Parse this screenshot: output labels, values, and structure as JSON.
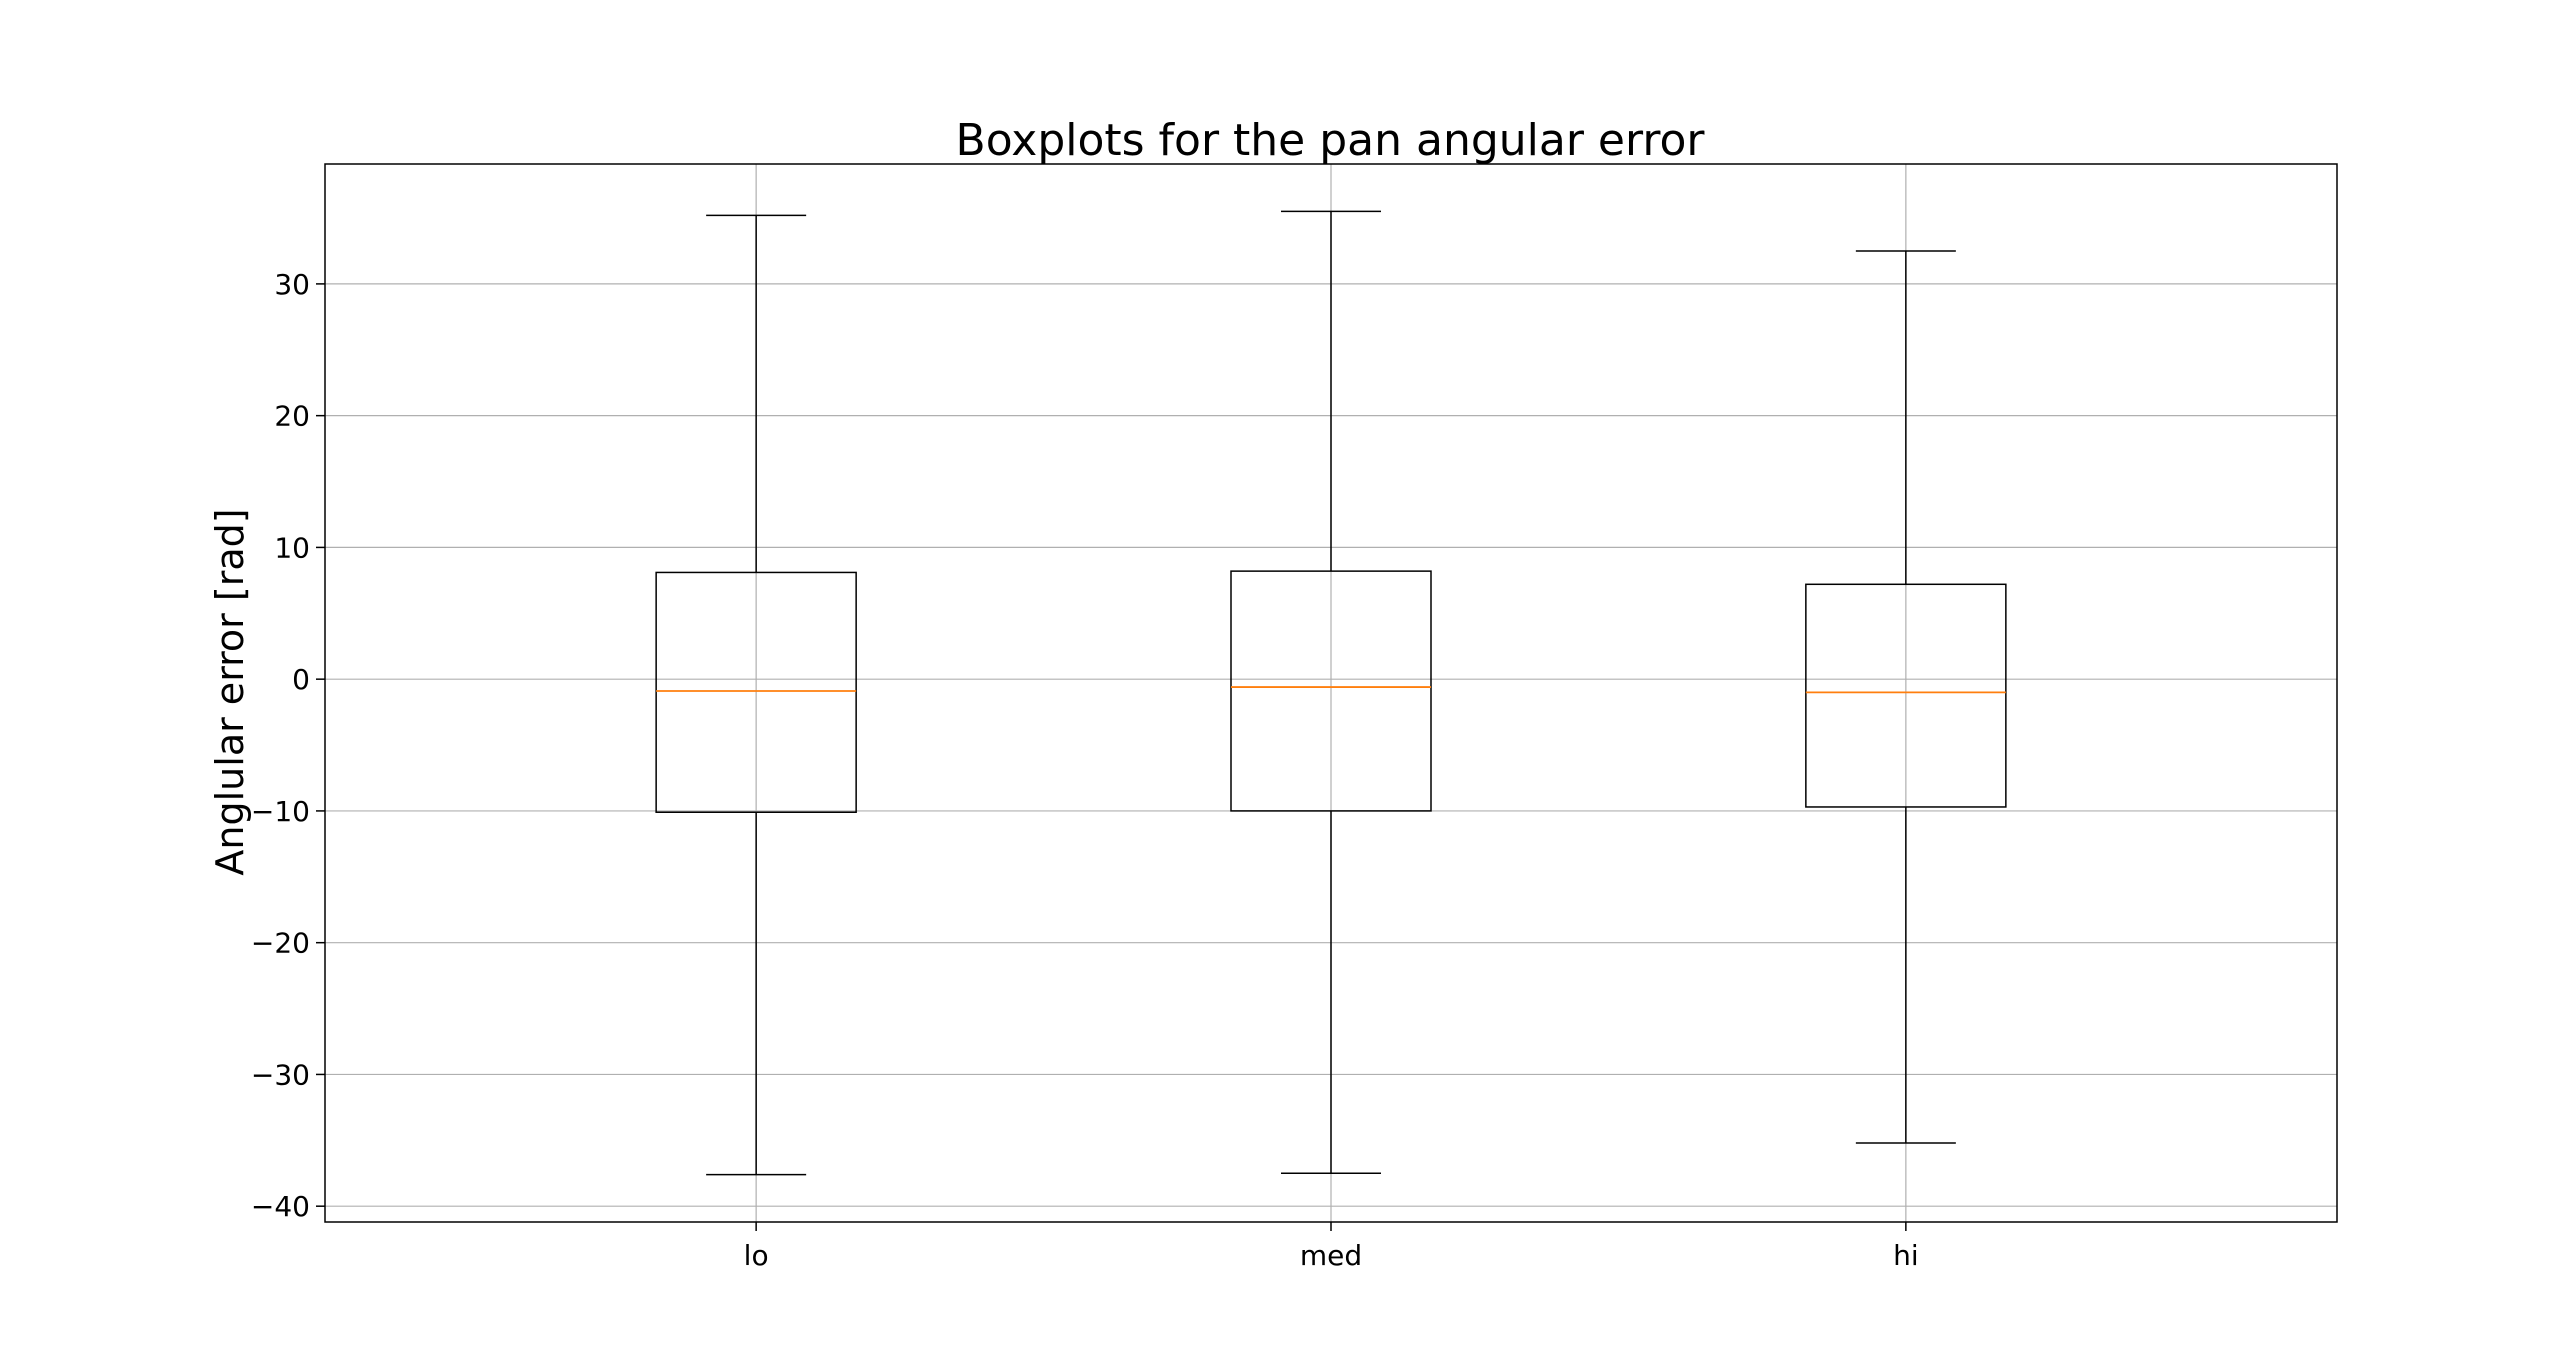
{
  "chart_data": {
    "type": "boxplot",
    "title": "Boxplots for the pan angular error",
    "xlabel": "",
    "ylabel": "Anglular error [rad]",
    "categories": [
      "lo",
      "med",
      "hi"
    ],
    "boxes": [
      {
        "category": "lo",
        "whisker_low": -37.6,
        "q1": -10.1,
        "median": -0.9,
        "q3": 8.1,
        "whisker_high": 35.2
      },
      {
        "category": "med",
        "whisker_low": -37.5,
        "q1": -10.0,
        "median": -0.6,
        "q3": 8.2,
        "whisker_high": 35.5
      },
      {
        "category": "hi",
        "whisker_low": -35.2,
        "q1": -9.7,
        "median": -1.0,
        "q3": 7.2,
        "whisker_high": 32.5
      }
    ],
    "ylim": [
      -41.2,
      39.1
    ],
    "yticks": [
      -40,
      -30,
      -20,
      -10,
      0,
      10,
      20,
      30
    ],
    "ytick_labels": [
      "−40",
      "−30",
      "−20",
      "−10",
      "0",
      "10",
      "20",
      "30"
    ],
    "grid": true,
    "colors": {
      "box": "#000000",
      "median": "#ff7f0e",
      "grid": "#b0b0b0",
      "spine": "#000000"
    }
  }
}
